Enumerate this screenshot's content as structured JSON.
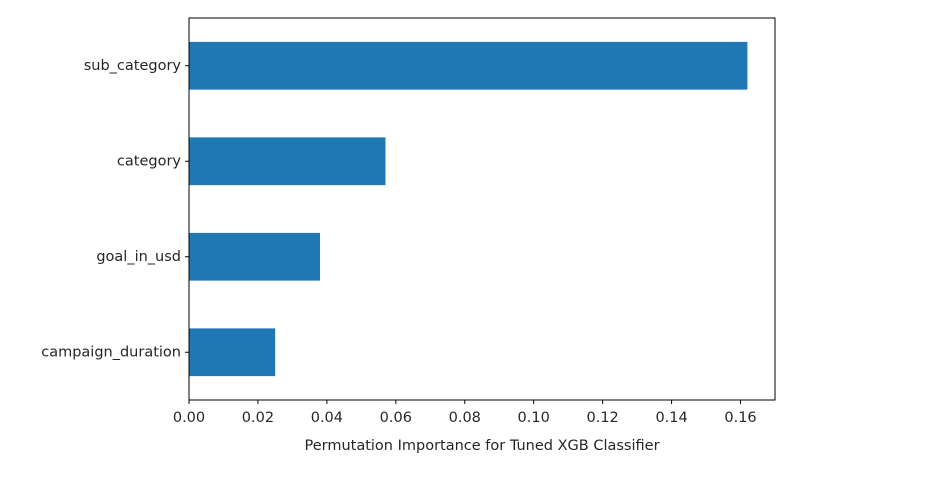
{
  "chart_data": {
    "type": "bar",
    "orientation": "horizontal",
    "categories": [
      "campaign_duration",
      "goal_in_usd",
      "category",
      "sub_category"
    ],
    "values": [
      0.025,
      0.038,
      0.057,
      0.162
    ],
    "xlabel": "Permutation Importance for Tuned XGB Classifier",
    "ylabel": "",
    "title": "",
    "xlim": [
      0.0,
      0.17
    ],
    "xticks": [
      0.0,
      0.02,
      0.04,
      0.06,
      0.08,
      0.1,
      0.12,
      0.14,
      0.16
    ],
    "xtick_labels": [
      "0.00",
      "0.02",
      "0.04",
      "0.06",
      "0.08",
      "0.10",
      "0.12",
      "0.14",
      "0.16"
    ],
    "grid": false,
    "legend": "none",
    "bar_color": "#1f77b4"
  }
}
